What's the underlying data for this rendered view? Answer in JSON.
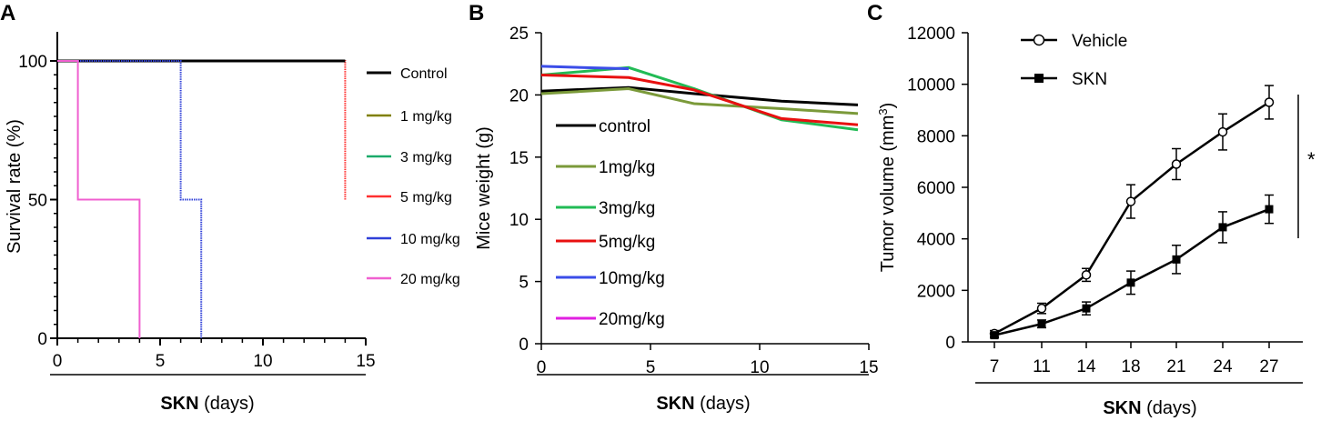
{
  "chart_data": [
    {
      "panel": "A",
      "type": "line",
      "subtype": "kaplan-meier",
      "ylabel": "Survival rate (%)",
      "xlabel_bold": "SKN",
      "xlabel_rest": " (days)",
      "xlim": [
        0,
        15
      ],
      "ylim": [
        0,
        100
      ],
      "xticks": [
        "0",
        "5",
        "10",
        "15"
      ],
      "yticks": [
        "0",
        "50",
        "100"
      ],
      "legend": [
        "Control",
        "1 mg/kg",
        "3 mg/kg",
        "5 mg/kg",
        "10 mg/kg",
        "20 mg/kg"
      ],
      "series": [
        {
          "name": "Control",
          "color": "#000000",
          "steps": [
            [
              0,
              100
            ],
            [
              14,
              100
            ]
          ]
        },
        {
          "name": "1 mg/kg",
          "color": "#808000",
          "steps": [
            [
              0,
              100
            ],
            [
              14,
              100
            ]
          ]
        },
        {
          "name": "3 mg/kg",
          "color": "#1aaa6a",
          "steps": [
            [
              0,
              100
            ],
            [
              14,
              100
            ]
          ]
        },
        {
          "name": "5 mg/kg",
          "color": "#ff3030",
          "steps": [
            [
              0,
              100
            ],
            [
              14,
              100
            ],
            [
              14,
              50
            ]
          ]
        },
        {
          "name": "10 mg/kg",
          "color": "#3040d8",
          "steps": [
            [
              0,
              100
            ],
            [
              6,
              100
            ],
            [
              6,
              50
            ],
            [
              7,
              50
            ],
            [
              7,
              0
            ]
          ]
        },
        {
          "name": "20 mg/kg",
          "color": "#f060d0",
          "steps": [
            [
              0,
              100
            ],
            [
              1,
              100
            ],
            [
              1,
              50
            ],
            [
              4,
              50
            ],
            [
              4,
              0
            ]
          ]
        }
      ]
    },
    {
      "panel": "B",
      "type": "line",
      "ylabel": "Mice weight (g)",
      "xlabel_bold": "SKN",
      "xlabel_rest": " (days)",
      "xlim": [
        0,
        15
      ],
      "ylim": [
        0,
        25
      ],
      "xticks": [
        "0",
        "5",
        "10",
        "15"
      ],
      "yticks": [
        "0",
        "5",
        "10",
        "15",
        "20",
        "25"
      ],
      "legend": [
        "control",
        "1mg/kg",
        "3mg/kg",
        "5mg/kg",
        "10mg/kg",
        "20mg/kg"
      ],
      "series": [
        {
          "name": "control",
          "color": "#000000",
          "x": [
            0,
            4,
            7,
            11,
            14.5
          ],
          "values": [
            20.3,
            20.6,
            20.1,
            19.5,
            19.2
          ]
        },
        {
          "name": "1mg/kg",
          "color": "#7b9a3a",
          "x": [
            0,
            4,
            7,
            11,
            14.5
          ],
          "values": [
            20.1,
            20.5,
            19.3,
            18.9,
            18.5
          ]
        },
        {
          "name": "3mg/kg",
          "color": "#22bb55",
          "x": [
            0,
            4,
            7,
            11,
            14.5
          ],
          "values": [
            21.6,
            22.2,
            20.5,
            18.0,
            17.2
          ]
        },
        {
          "name": "5mg/kg",
          "color": "#e81010",
          "x": [
            0,
            4,
            7,
            11,
            14.5
          ],
          "values": [
            21.6,
            21.4,
            20.4,
            18.1,
            17.6
          ]
        },
        {
          "name": "10mg/kg",
          "color": "#3b4de8",
          "x": [
            0,
            4
          ],
          "values": [
            22.3,
            22.1
          ]
        },
        {
          "name": "20mg/kg",
          "color": "#e020e0",
          "x": [],
          "values": []
        }
      ]
    },
    {
      "panel": "C",
      "type": "line",
      "ylabel": "Tumor volume (mm",
      "ylabel_sup": "3",
      "ylabel_end": ")",
      "xlabel_bold": "SKN",
      "xlabel_rest": " (days)",
      "categories": [
        "7",
        "11",
        "14",
        "18",
        "21",
        "24",
        "27"
      ],
      "ylim": [
        0,
        12000
      ],
      "yticks": [
        "0",
        "2000",
        "4000",
        "6000",
        "8000",
        "10000",
        "12000"
      ],
      "significance": "*",
      "series": [
        {
          "name": "Vehicle",
          "marker": "open-circle",
          "values": [
            320,
            1300,
            2600,
            5450,
            6900,
            8150,
            9300
          ],
          "errors": [
            120,
            200,
            250,
            650,
            600,
            700,
            650
          ]
        },
        {
          "name": "SKN",
          "marker": "filled-square",
          "values": [
            260,
            700,
            1300,
            2300,
            3200,
            4450,
            5150
          ],
          "errors": [
            100,
            150,
            250,
            450,
            550,
            600,
            550
          ]
        }
      ]
    }
  ]
}
